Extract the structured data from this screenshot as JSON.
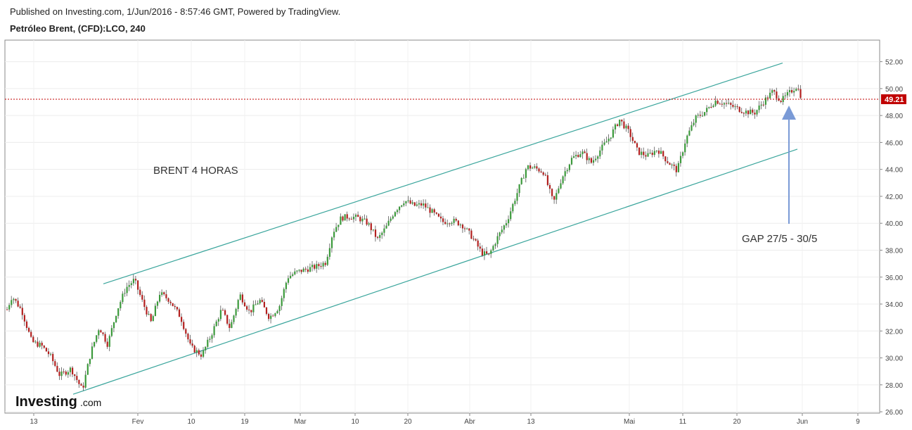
{
  "header": {
    "published": "Published on Investing.com, 1/Jun/2016 - 8:57:46 GMT, Powered by TradingView.",
    "symbol": "Petróleo Brent, (CFD):LCO, 240"
  },
  "chart_data": {
    "type": "candlestick",
    "title": "Petróleo Brent, (CFD):LCO, 240",
    "x_ticks": [
      "13",
      "Fev",
      "10",
      "19",
      "Mar",
      "10",
      "20",
      "Abr",
      "13",
      "Mai",
      "11",
      "20",
      "Jun",
      "9"
    ],
    "y_ticks": [
      "26.00",
      "28.00",
      "30.00",
      "32.00",
      "34.00",
      "36.00",
      "38.00",
      "40.00",
      "42.00",
      "44.00",
      "46.00",
      "48.00",
      "50.00",
      "52.00"
    ],
    "ylim": [
      25.9,
      53.6
    ],
    "current_price": 49.21,
    "current_price_label": "49.21",
    "up_color": "#3c9a3c",
    "down_color": "#b3201f",
    "channel_color": "#3aa59c",
    "price_line_color": "#c00000",
    "series": [
      {
        "tick": "13",
        "value": 34.4
      },
      {
        "tick": "Fev",
        "value": 35.9
      },
      {
        "tick": "10",
        "value": 30.5
      },
      {
        "tick": "19",
        "value": 34.4
      },
      {
        "tick": "Mar",
        "value": 36.0
      },
      {
        "tick": "10",
        "value": 40.7
      },
      {
        "tick": "20",
        "value": 41.6
      },
      {
        "tick": "Abr",
        "value": 39.2
      },
      {
        "tick": "13",
        "value": 44.2
      },
      {
        "tick": "Mai",
        "value": 47.3
      },
      {
        "tick": "11",
        "value": 47.6
      },
      {
        "tick": "20",
        "value": 48.6
      },
      {
        "tick": "Jun",
        "value": 49.2
      }
    ],
    "channel_lines": [
      {
        "name": "upper",
        "from": {
          "tick": "Fev",
          "value": 35.5
        },
        "to": {
          "tick": "Jun",
          "value": 51.9
        }
      },
      {
        "name": "lower",
        "from": {
          "tick": "13",
          "value": 27.3
        },
        "to": {
          "tick": "Jun",
          "value": 45.5
        }
      }
    ],
    "annotations": [
      {
        "text": "BRENT 4 HORAS"
      },
      {
        "text": "GAP 27/5 - 30/5"
      }
    ]
  },
  "branding": {
    "logo_main": "Investing",
    "logo_sub": ".com"
  }
}
